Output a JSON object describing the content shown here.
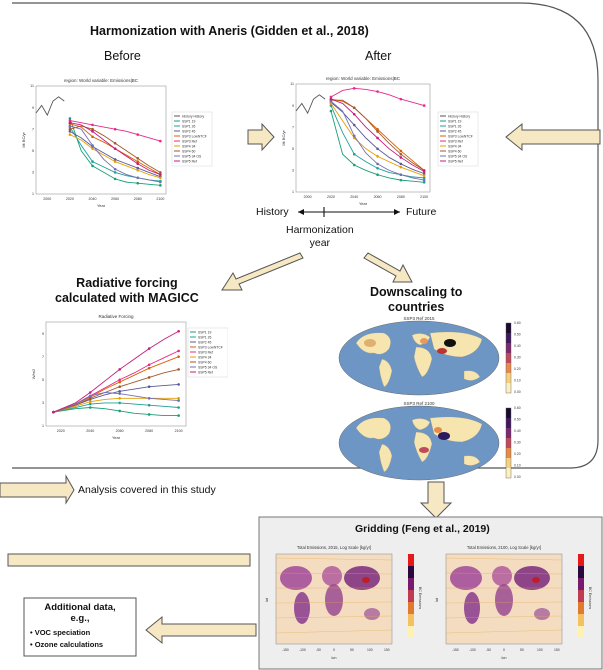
{
  "main_box": {
    "title": "Harmonization with Aneris (Gidden et al., 2018)",
    "before_label": "Before",
    "after_label": "After"
  },
  "timeline": {
    "history": "History",
    "future": "Future",
    "harmonization_year": "Harmonization\nyear"
  },
  "rf_section": {
    "title": "Radiative forcing\ncalculated with MAGICC"
  },
  "downscaling_section": {
    "title": "Downscaling to\ncountries"
  },
  "analysis_note": {
    "label": "Analysis covered in this study"
  },
  "gridding": {
    "title": "Gridding (Feng et al., 2019)"
  },
  "additional_data": {
    "title": "Additional data,\ne.g.,",
    "items": [
      "VOC speciation",
      "Ozone calculations"
    ]
  },
  "plot_before": {
    "title": "region: World variable: Emissions|BC",
    "ylabel": "Mt BC/yr",
    "xlabel": "Year",
    "xticks": [
      "2000",
      "2020",
      "2040",
      "2060",
      "2080",
      "2100"
    ],
    "legend": [
      "History History",
      "SSP1 19",
      "SSP1 26",
      "SSP2 45",
      "SSP3 LowNTCF",
      "SSP3 Ref",
      "SSP4 34",
      "SSP4 60",
      "SSP5 34 OS",
      "SSP5 Ref"
    ]
  },
  "plot_after": {
    "title": "region: World variable: Emissions|BC",
    "ylabel": "Mt BC/yr",
    "xlabel": "Year",
    "xticks": [
      "2000",
      "2020",
      "2040",
      "2060",
      "2080",
      "2100"
    ],
    "legend": [
      "History History",
      "SSP1 19",
      "SSP1 26",
      "SSP2 45",
      "SSP3 LowNTCF",
      "SSP3 Ref",
      "SSP4 34",
      "SSP4 60",
      "SSP5 34 OS",
      "SSP5 Ref"
    ]
  },
  "plot_rf": {
    "title": "Radiative Forcing",
    "ylabel": "W/m2",
    "xlabel": "Year",
    "xticks": [
      "2020",
      "2040",
      "2060",
      "2080",
      "2100"
    ],
    "legend": [
      "SSP1 19",
      "SSP1 26",
      "SSP2 45",
      "SSP3 LowNTCF",
      "SSP3 Ref",
      "SSP4 34",
      "SSP4 60",
      "SSP5 34 OS",
      "SSP5 Ref"
    ]
  },
  "maps": {
    "top_title": "SSP3 Ref 2015",
    "bottom_title": "SSP3 Ref 2100"
  },
  "grid_maps": {
    "left_title": "Total Emissions, 2015, Log Scale [kg/yr]",
    "right_title": "Total Emissions, 2100, Log Scale [kg/yr]",
    "xlabel": "lon",
    "ylabel": "lat",
    "cbar_label": "BC Emissions"
  },
  "series_colors": [
    "#555555",
    "#1a9e77",
    "#1f9f9a",
    "#5a5a9a",
    "#d95f02",
    "#e7298a",
    "#e69f00",
    "#a05a2c",
    "#7570b3",
    "#c51b7d"
  ],
  "chart_data": [
    {
      "type": "line",
      "title": "region: World variable: Emissions|BC",
      "xlabel": "Year",
      "ylabel": "Mt BC/yr",
      "x": [
        2020,
        2030,
        2040,
        2050,
        2060,
        2070,
        2080,
        2090,
        2100
      ],
      "history": {
        "name": "History History",
        "x": [
          1990,
          1995,
          2000,
          2005,
          2010,
          2015
        ],
        "values": [
          8.5,
          9.2,
          8.3,
          9.6,
          10.0,
          9.6
        ]
      },
      "series": [
        {
          "name": "SSP1 19",
          "values": [
            8.0,
            5.0,
            3.6,
            3.0,
            2.4,
            2.1,
            2.0,
            1.9,
            1.8
          ]
        },
        {
          "name": "SSP1 26",
          "values": [
            7.2,
            5.5,
            4.0,
            3.5,
            3.0,
            2.7,
            2.5,
            2.3,
            2.2
          ]
        },
        {
          "name": "SSP2 45",
          "values": [
            6.8,
            6.2,
            5.4,
            4.8,
            4.2,
            3.8,
            3.4,
            3.0,
            2.6
          ]
        },
        {
          "name": "SSP3 LowNTCF",
          "values": [
            7.5,
            7.2,
            6.3,
            5.8,
            5.2,
            4.6,
            4.0,
            3.4,
            2.8
          ]
        },
        {
          "name": "SSP3 Ref",
          "values": [
            7.8,
            7.6,
            7.4,
            7.2,
            7.0,
            6.8,
            6.5,
            6.2,
            5.9
          ]
        },
        {
          "name": "SSP4 34",
          "values": [
            6.5,
            6.0,
            5.2,
            4.6,
            4.0,
            3.6,
            3.2,
            2.8,
            2.5
          ]
        },
        {
          "name": "SSP4 60",
          "values": [
            7.0,
            7.3,
            7.0,
            6.4,
            5.7,
            5.0,
            4.3,
            3.6,
            3.0
          ]
        },
        {
          "name": "SSP5 34 OS",
          "values": [
            7.3,
            7.0,
            5.5,
            4.2,
            3.3,
            2.8,
            2.5,
            2.3,
            2.1
          ]
        },
        {
          "name": "SSP5 Ref",
          "values": [
            7.6,
            7.4,
            6.8,
            6.0,
            5.2,
            4.5,
            3.8,
            3.2,
            2.8
          ]
        }
      ]
    },
    {
      "type": "line",
      "title": "region: World variable: Emissions|BC",
      "xlabel": "Year",
      "ylabel": "Mt BC/yr",
      "x": [
        2020,
        2030,
        2040,
        2050,
        2060,
        2070,
        2080,
        2090,
        2100
      ],
      "history": {
        "name": "History History",
        "x": [
          1990,
          1995,
          2000,
          2005,
          2010,
          2015
        ],
        "values": [
          8.5,
          9.2,
          8.3,
          9.6,
          10.0,
          9.6
        ]
      },
      "series": [
        {
          "name": "SSP1 19",
          "values": [
            8.5,
            4.5,
            3.5,
            3.0,
            2.6,
            2.3,
            2.1,
            2.0,
            1.9
          ]
        },
        {
          "name": "SSP1 26",
          "values": [
            9.0,
            6.5,
            4.5,
            3.8,
            3.2,
            2.8,
            2.6,
            2.4,
            2.3
          ]
        },
        {
          "name": "SSP2 45",
          "values": [
            9.3,
            8.4,
            7.2,
            6.0,
            5.0,
            4.2,
            3.6,
            3.1,
            2.7
          ]
        },
        {
          "name": "SSP3 LowNTCF",
          "values": [
            9.6,
            9.4,
            8.8,
            7.8,
            6.8,
            5.8,
            4.8,
            3.9,
            3.0
          ]
        },
        {
          "name": "SSP3 Ref",
          "values": [
            9.8,
            10.4,
            10.6,
            10.5,
            10.3,
            10.0,
            9.6,
            9.3,
            9.0
          ]
        },
        {
          "name": "SSP4 34",
          "values": [
            9.2,
            7.6,
            6.0,
            5.0,
            4.3,
            3.8,
            3.3,
            2.9,
            2.5
          ]
        },
        {
          "name": "SSP4 60",
          "values": [
            9.5,
            9.5,
            8.8,
            7.8,
            6.6,
            5.5,
            4.5,
            3.7,
            3.0
          ]
        },
        {
          "name": "SSP5 34 OS",
          "values": [
            9.4,
            8.5,
            6.2,
            4.6,
            3.6,
            3.0,
            2.6,
            2.3,
            2.1
          ]
        },
        {
          "name": "SSP5 Ref",
          "values": [
            9.6,
            9.2,
            8.2,
            7.0,
            6.0,
            5.0,
            4.2,
            3.5,
            2.9
          ]
        }
      ]
    },
    {
      "type": "line",
      "title": "Radiative Forcing",
      "xlabel": "Year",
      "ylabel": "W/m2",
      "x": [
        2015,
        2030,
        2040,
        2050,
        2060,
        2070,
        2080,
        2090,
        2100
      ],
      "series": [
        {
          "name": "SSP1 19",
          "values": [
            2.2,
            2.5,
            2.6,
            2.5,
            2.3,
            2.1,
            2.0,
            1.9,
            1.9
          ]
        },
        {
          "name": "SSP1 26",
          "values": [
            2.2,
            2.6,
            2.9,
            3.0,
            3.0,
            2.9,
            2.8,
            2.7,
            2.6
          ]
        },
        {
          "name": "SSP2 45",
          "values": [
            2.2,
            2.8,
            3.3,
            3.7,
            4.0,
            4.2,
            4.4,
            4.5,
            4.6
          ]
        },
        {
          "name": "SSP3 LowNTCF",
          "values": [
            2.2,
            2.9,
            3.5,
            4.2,
            4.8,
            5.4,
            6.0,
            6.5,
            7.0
          ]
        },
        {
          "name": "SSP3 Ref",
          "values": [
            2.2,
            2.9,
            3.6,
            4.3,
            5.0,
            5.6,
            6.3,
            6.9,
            7.5
          ]
        },
        {
          "name": "SSP4 34",
          "values": [
            2.2,
            2.7,
            3.1,
            3.3,
            3.4,
            3.4,
            3.4,
            3.4,
            3.4
          ]
        },
        {
          "name": "SSP4 60",
          "values": [
            2.2,
            2.8,
            3.4,
            3.9,
            4.4,
            4.8,
            5.2,
            5.6,
            5.9
          ]
        },
        {
          "name": "SSP5 34 OS",
          "values": [
            2.2,
            2.9,
            3.6,
            3.9,
            3.8,
            3.6,
            3.4,
            3.3,
            3.2
          ]
        },
        {
          "name": "SSP5 Ref",
          "values": [
            2.2,
            3.0,
            3.9,
            4.9,
            5.9,
            6.8,
            7.7,
            8.5,
            9.2
          ]
        }
      ]
    }
  ]
}
